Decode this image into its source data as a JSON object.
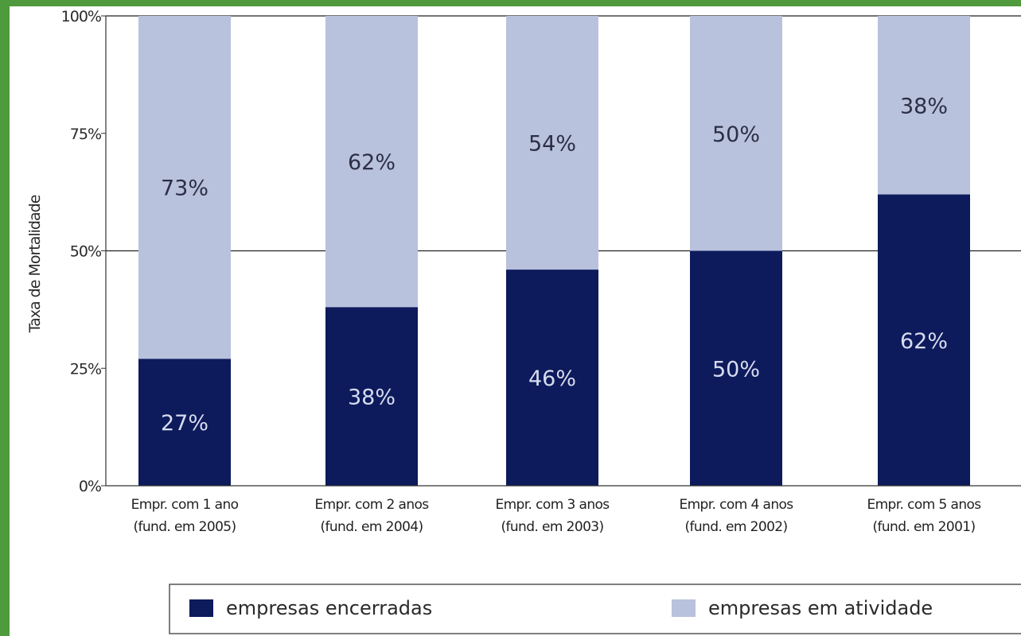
{
  "chart_data": {
    "type": "bar",
    "stacked": true,
    "ylabel": "Taxa de Mortalidade",
    "ylim": [
      0,
      100
    ],
    "yticks": [
      "0%",
      "25%",
      "50%",
      "75%",
      "100%"
    ],
    "categories": [
      [
        "Empr. com 1 ano",
        "(fund. em 2005)"
      ],
      [
        "Empr. com 2 anos",
        "(fund. em 2004)"
      ],
      [
        "Empr. com 3 anos",
        "(fund. em 2003)"
      ],
      [
        "Empr. com 4 anos",
        "(fund. em 2002)"
      ],
      [
        "Empr. com 5 anos",
        "(fund. em 2001)"
      ]
    ],
    "series": [
      {
        "name": "empresas encerradas",
        "values": [
          27,
          38,
          46,
          50,
          62
        ],
        "labels": [
          "27%",
          "38%",
          "46%",
          "50%",
          "62%"
        ],
        "color": "#0d1a5c"
      },
      {
        "name": "empresas em atividade",
        "values": [
          73,
          62,
          54,
          50,
          38
        ],
        "labels": [
          "73%",
          "62%",
          "54%",
          "50%",
          "38%"
        ],
        "color": "#b9c2dc"
      }
    ],
    "grid": "horizontal lines at 50% and 100%",
    "legend_position": "bottom"
  },
  "colors": {
    "frame": "#4f9a3c",
    "dark_series": "#0d1a5c",
    "light_series": "#b9c2dc"
  }
}
